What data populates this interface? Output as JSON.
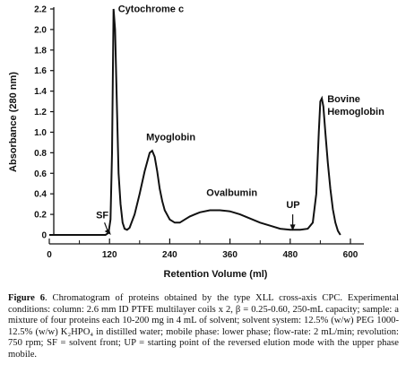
{
  "chart_data": {
    "type": "line",
    "ylabel": "Absorbance (280 nm)",
    "xlabel": "Retention Volume (ml)",
    "xlim": [
      0,
      620
    ],
    "ylim": [
      0,
      2.2
    ],
    "x_ticks": [
      0,
      120,
      240,
      360,
      480,
      600
    ],
    "y_ticks": [
      0,
      0.2,
      0.4,
      0.6,
      0.8,
      1.0,
      1.2,
      1.4,
      1.6,
      1.8,
      2.0,
      2.2
    ],
    "y_tick_labels": [
      "0",
      "0.2",
      "0.4",
      "0.6",
      "0.8",
      "1.0",
      "1.2",
      "1.4",
      "1.6",
      "1.8",
      "2.0",
      "2.2"
    ],
    "series": [
      {
        "x": [
          0,
          60,
          112,
          118,
          122,
          125,
          128,
          131,
          135,
          138,
          142,
          146,
          150,
          155,
          160,
          170,
          180,
          190,
          200,
          205,
          210,
          215,
          220,
          225,
          230,
          240,
          250,
          260,
          270,
          280,
          290,
          300,
          320,
          340,
          360,
          380,
          400,
          420,
          440,
          460,
          480,
          500,
          515,
          525,
          532,
          537,
          540,
          543,
          546,
          550,
          555,
          560,
          565,
          570,
          575,
          580
        ],
        "y": [
          0,
          0,
          0,
          0.02,
          0.15,
          0.8,
          2.2,
          2.0,
          1.2,
          0.6,
          0.3,
          0.12,
          0.06,
          0.05,
          0.07,
          0.2,
          0.4,
          0.62,
          0.8,
          0.82,
          0.76,
          0.62,
          0.45,
          0.33,
          0.24,
          0.15,
          0.12,
          0.12,
          0.15,
          0.18,
          0.2,
          0.22,
          0.24,
          0.24,
          0.23,
          0.2,
          0.16,
          0.12,
          0.09,
          0.06,
          0.05,
          0.05,
          0.06,
          0.12,
          0.4,
          1.0,
          1.3,
          1.33,
          1.25,
          1.0,
          0.7,
          0.45,
          0.25,
          0.12,
          0.04,
          0.0
        ]
      }
    ],
    "annotations": [
      {
        "text": "Cytochrome c",
        "x": 137,
        "y": 2.17
      },
      {
        "text": "Myoglobin",
        "x": 193,
        "y": 0.92
      },
      {
        "text": "Ovalbumin",
        "x": 313,
        "y": 0.38
      },
      {
        "text": "Bovine",
        "x": 554,
        "y": 1.29
      },
      {
        "text": "Hemoglobin",
        "x": 554,
        "y": 1.17
      },
      {
        "text": "SF",
        "x": 93,
        "y": 0.16
      },
      {
        "text": "UP",
        "x": 472,
        "y": 0.26
      }
    ]
  },
  "caption": {
    "figure_label": "Figure 6",
    "text": ". Chromatogram of proteins obtained by the type XLL cross-axis CPC. Experimental conditions: column: 2.6 mm ID PTFE multilayer coils x 2, β = 0.25-0.60, 250-mL capacity; sample: a mixture of four proteins each 10-200 mg in 4 mL of solvent; solvent system: 12.5% (w/w) PEG 1000-12.5% (w/w) K₂HPO₄ in distilled water; mobile phase: lower phase; flow-rate: 2 mL/min; revolution: 750 rpm; SF = solvent front; UP = starting point of the reversed elution mode with the upper phase mobile."
  }
}
